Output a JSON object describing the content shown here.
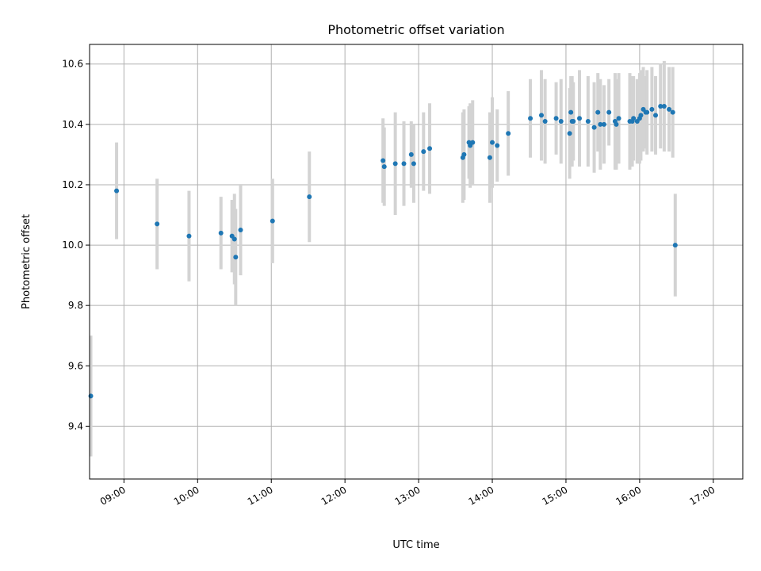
{
  "chart_data": {
    "type": "scatter",
    "title": "Photometric offset variation",
    "xlabel": "UTC time",
    "ylabel": "Photometric offset",
    "xlim": [
      "08:32",
      "17:24"
    ],
    "ylim": [
      9.225,
      10.665
    ],
    "x_ticks": [
      "09:00",
      "10:00",
      "11:00",
      "12:00",
      "13:00",
      "14:00",
      "15:00",
      "16:00",
      "17:00"
    ],
    "y_ticks": [
      "9.4",
      "9.6",
      "9.8",
      "10.0",
      "10.2",
      "10.4",
      "10.6"
    ],
    "grid": true,
    "colors": {
      "point": "#1f77b4",
      "errorbar": "#d3d3d3",
      "grid": "#b0b0b0"
    },
    "series": [
      {
        "x": [
          "08:33",
          "08:54",
          "09:27",
          "09:53",
          "10:19",
          "10:28",
          "10:30",
          "10:31",
          "10:35",
          "11:01",
          "11:31",
          "12:31",
          "12:32",
          "12:41",
          "12:48",
          "12:54",
          "12:56",
          "13:04",
          "13:09",
          "13:36",
          "13:37",
          "13:41",
          "13:42",
          "13:44",
          "13:58",
          "14:00",
          "14:04",
          "14:13",
          "14:31",
          "14:40",
          "14:43",
          "14:52",
          "14:56",
          "15:03",
          "15:04",
          "15:05",
          "15:06",
          "15:11",
          "15:18",
          "15:23",
          "15:26",
          "15:28",
          "15:31",
          "15:35",
          "15:40",
          "15:41",
          "15:43",
          "15:52",
          "15:54",
          "15:55",
          "15:58",
          "16:00",
          "16:01",
          "16:03",
          "16:05",
          "16:06",
          "16:10",
          "16:13",
          "16:17",
          "16:20",
          "16:24",
          "16:27",
          "16:29"
        ],
        "y": [
          9.5,
          10.18,
          10.07,
          10.03,
          10.04,
          10.03,
          10.02,
          9.96,
          10.05,
          10.08,
          10.16,
          10.28,
          10.26,
          10.27,
          10.27,
          10.3,
          10.27,
          10.31,
          10.32,
          10.29,
          10.3,
          10.34,
          10.33,
          10.34,
          10.29,
          10.34,
          10.33,
          10.37,
          10.42,
          10.43,
          10.41,
          10.42,
          10.41,
          10.37,
          10.44,
          10.41,
          10.41,
          10.42,
          10.41,
          10.39,
          10.44,
          10.4,
          10.4,
          10.44,
          10.41,
          10.4,
          10.42,
          10.41,
          10.41,
          10.42,
          10.41,
          10.42,
          10.43,
          10.45,
          10.44,
          10.44,
          10.45,
          10.43,
          10.46,
          10.46,
          10.45,
          10.44,
          10.0
        ],
        "err": [
          0.2,
          0.16,
          0.15,
          0.15,
          0.12,
          0.12,
          0.15,
          0.16,
          0.15,
          0.14,
          0.15,
          0.14,
          0.13,
          0.17,
          0.14,
          0.11,
          0.13,
          0.13,
          0.15,
          0.15,
          0.15,
          0.12,
          0.14,
          0.14,
          0.15,
          0.15,
          0.12,
          0.14,
          0.13,
          0.15,
          0.14,
          0.12,
          0.14,
          0.15,
          0.12,
          0.15,
          0.13,
          0.16,
          0.15,
          0.15,
          0.13,
          0.15,
          0.13,
          0.11,
          0.16,
          0.15,
          0.15,
          0.16,
          0.15,
          0.14,
          0.14,
          0.15,
          0.15,
          0.14,
          0.12,
          0.14,
          0.14,
          0.13,
          0.14,
          0.15,
          0.14,
          0.15,
          0.17
        ]
      }
    ]
  }
}
